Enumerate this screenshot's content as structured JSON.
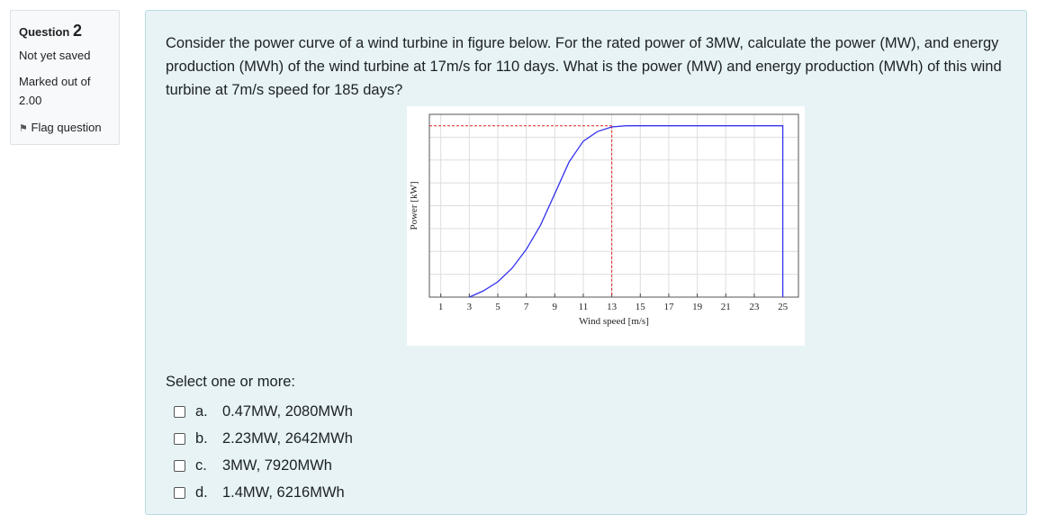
{
  "sidebar": {
    "question_label": "Question",
    "question_number": "2",
    "status": "Not yet saved",
    "marked_label": "Marked out of",
    "marked_value": "2.00",
    "flag": "Flag question"
  },
  "question": {
    "text": "Consider the power curve of a wind turbine in figure below. For the rated power of 3MW, calculate the power (MW), and energy production (MWh) of the wind turbine at 17m/s for 110 days. What is the power (MW) and energy production (MWh) of this wind turbine at 7m/s speed for 185 days?",
    "figure": {
      "type": "line",
      "xlabel": "Wind speed [m/s]",
      "ylabel": "Power [kW]",
      "xlim": [
        0.2,
        26.1
      ],
      "ylim": [
        0,
        3200
      ],
      "xticks": [
        1,
        3,
        5,
        7,
        9,
        11,
        13,
        15,
        17,
        19,
        21,
        23,
        25
      ],
      "ygrid": [
        0,
        400,
        800,
        1200,
        1600,
        2000,
        2400,
        2800,
        3200
      ],
      "grid": true,
      "series": [
        {
          "color": "#3333ee",
          "x": [
            3,
            4,
            5,
            6,
            7,
            8,
            9,
            10,
            11,
            12,
            13,
            14,
            25,
            25
          ],
          "values": [
            0,
            110,
            268,
            505,
            835,
            1260,
            1810,
            2365,
            2730,
            2900,
            2980,
            3000,
            3000,
            0
          ]
        }
      ],
      "reference": {
        "color": "#dd2222",
        "x": 13,
        "y": 3000
      }
    },
    "prompt": "Select one or more:",
    "options": [
      {
        "letter": "a.",
        "text": "0.47MW, 2080MWh"
      },
      {
        "letter": "b.",
        "text": "2.23MW, 2642MWh"
      },
      {
        "letter": "c.",
        "text": "3MW, 7920MWh"
      },
      {
        "letter": "d.",
        "text": "1.4MW, 6216MWh"
      }
    ]
  }
}
